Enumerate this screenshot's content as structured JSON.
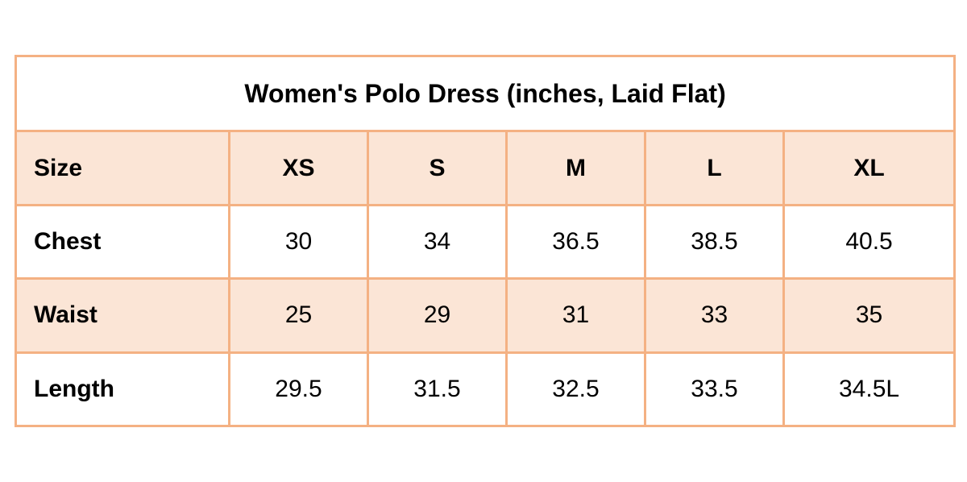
{
  "title": "Women's Polo Dress (inches, Laid Flat)",
  "colors": {
    "border": "#f4b183",
    "shaded_row": "#fbe5d6",
    "plain_row": "#ffffff"
  },
  "header": {
    "label": "Size",
    "sizes": [
      "XS",
      "S",
      "M",
      "L",
      "XL"
    ]
  },
  "rows": [
    {
      "label": "Chest",
      "values": [
        "30",
        "34",
        "36.5",
        "38.5",
        "40.5"
      ]
    },
    {
      "label": "Waist",
      "values": [
        "25",
        "29",
        "31",
        "33",
        "35"
      ]
    },
    {
      "label": "Length",
      "values": [
        "29.5",
        "31.5",
        "32.5",
        "33.5",
        "34.5L"
      ]
    }
  ]
}
